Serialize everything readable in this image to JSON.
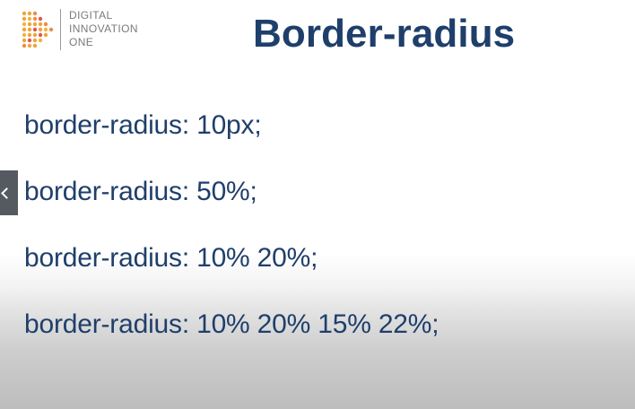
{
  "logo": {
    "lines": [
      "DIGITAL",
      "INNOVATION",
      "ONE"
    ],
    "icon": "dio-dot-logo-icon",
    "colors": {
      "primary": "#F0A33A",
      "accent": "#E2574C",
      "text": "#7A7A7A"
    }
  },
  "slide": {
    "title": "Border-radius",
    "lines": [
      "border-radius: 10px;",
      "border-radius: 50%;",
      "border-radius: 10% 20%;",
      "border-radius: 10% 20% 15% 22%;"
    ],
    "title_color": "#1F3F6B",
    "text_color": "#1F3F6B"
  },
  "controls": {
    "previous_icon": "chevron-left-icon"
  }
}
